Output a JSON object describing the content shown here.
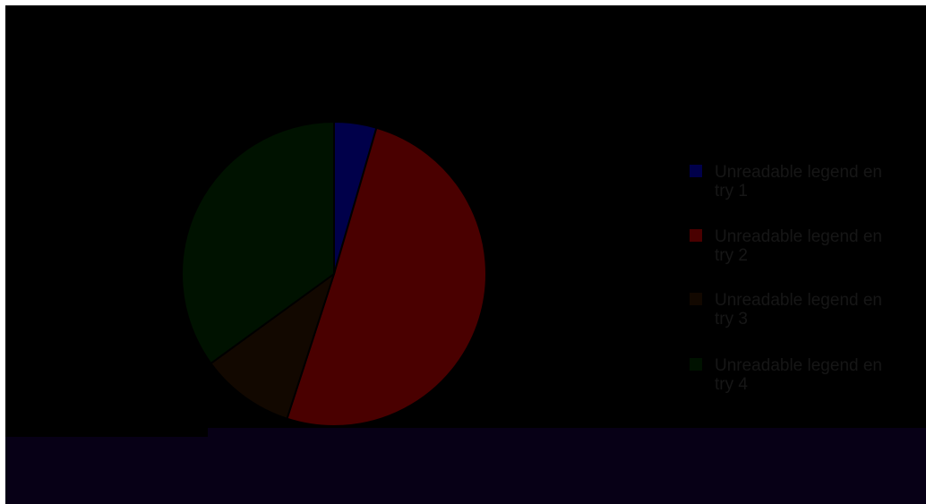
{
  "chart_data": {
    "type": "pie",
    "title": "",
    "series": [
      {
        "label": "Unreadable legend entry 1",
        "value": 4.5,
        "color": "#00004a"
      },
      {
        "label": "Unreadable legend entry 2",
        "value": 50.5,
        "color": "#4a0000"
      },
      {
        "label": "Unreadable legend entry 3",
        "value": 10.0,
        "color": "#120800"
      },
      {
        "label": "Unreadable legend entry 4",
        "value": 35.0,
        "color": "#001200"
      }
    ],
    "legend_position": "right"
  },
  "colors": {
    "background": "#000000",
    "band": "#070016",
    "frame": "#ffffff",
    "slice_border": "#000000"
  }
}
